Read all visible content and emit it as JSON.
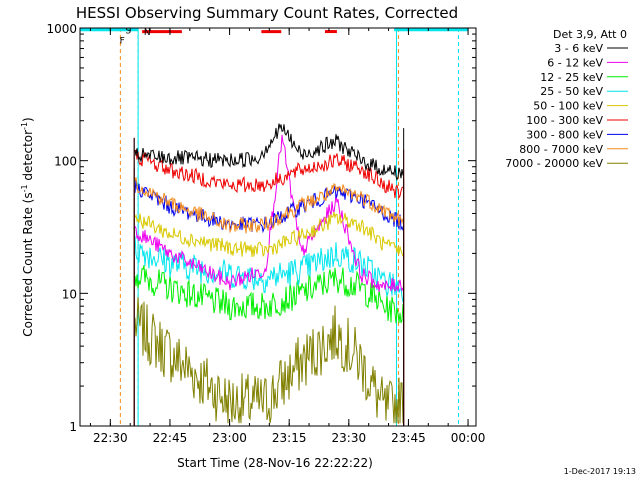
{
  "chart_data": {
    "type": "line",
    "title": "HESSI Observing Summary Count Rates, Corrected",
    "xlabel": "Start Time (28-Nov-16 22:22:22)",
    "ylabel_main": "Corrected Count Rate (s",
    "ylabel_sup1": "-1",
    "ylabel_mid": " detector",
    "ylabel_sup2": "-1",
    "ylabel_end": ")",
    "yscale": "log",
    "ylim": [
      1,
      1000
    ],
    "xlim": [
      "22:22:22",
      "00:02:00"
    ],
    "x_ticks": [
      "22:30",
      "22:45",
      "23:00",
      "23:15",
      "23:30",
      "23:45",
      "00:00"
    ],
    "y_ticks": [
      "1",
      "10",
      "100",
      "1000"
    ],
    "legend_title": "Det 3,9, Att 0",
    "legend_position": "top-right",
    "flags": {
      "S": {
        "label": "S",
        "color": "#f28a1c",
        "level": 990
      },
      "N": {
        "label": "N",
        "color": "#00e5ee",
        "level": 970
      },
      "F": {
        "label": "F",
        "color": "#ee0000",
        "level": 940,
        "segments": [
          [
            "22:38",
            "22:48"
          ],
          [
            "23:08",
            "23:13"
          ],
          [
            "23:24",
            "23:27"
          ]
        ]
      }
    },
    "night_intervals": [
      [
        "22:22",
        "22:37"
      ],
      [
        "23:42",
        "00:02"
      ]
    ],
    "series": [
      {
        "name": "3 - 6 keV",
        "color": "#000000",
        "values": [
          [
            22.6,
            110
          ],
          [
            22.75,
            105
          ],
          [
            23.0,
            100
          ],
          [
            23.12,
            105
          ],
          [
            23.22,
            180
          ],
          [
            23.3,
            110
          ],
          [
            23.45,
            140
          ],
          [
            23.55,
            100
          ],
          [
            23.65,
            85
          ],
          [
            23.73,
            80
          ]
        ]
      },
      {
        "name": "6 - 12 keV",
        "color": "#ee00ee",
        "values": [
          [
            22.6,
            30
          ],
          [
            22.75,
            20
          ],
          [
            23.0,
            12
          ],
          [
            23.15,
            15
          ],
          [
            23.22,
            150
          ],
          [
            23.3,
            20
          ],
          [
            23.45,
            50
          ],
          [
            23.55,
            14
          ],
          [
            23.65,
            11
          ],
          [
            23.73,
            12
          ]
        ]
      },
      {
        "name": "12 - 25 keV",
        "color": "#00ee00",
        "values": [
          [
            22.6,
            14
          ],
          [
            22.75,
            11
          ],
          [
            23.0,
            8
          ],
          [
            23.15,
            8
          ],
          [
            23.3,
            10
          ],
          [
            23.45,
            13
          ],
          [
            23.55,
            11
          ],
          [
            23.65,
            8
          ],
          [
            23.73,
            7
          ]
        ]
      },
      {
        "name": "25 - 50 keV",
        "color": "#00e5ee",
        "values": [
          [
            22.6,
            22
          ],
          [
            22.75,
            17
          ],
          [
            23.0,
            14
          ],
          [
            23.15,
            13
          ],
          [
            23.3,
            15
          ],
          [
            23.45,
            20
          ],
          [
            23.55,
            17
          ],
          [
            23.65,
            12
          ],
          [
            23.73,
            11
          ]
        ]
      },
      {
        "name": "50 - 100 keV",
        "color": "#d8c800",
        "values": [
          [
            22.6,
            38
          ],
          [
            22.75,
            28
          ],
          [
            23.0,
            22
          ],
          [
            23.15,
            21
          ],
          [
            23.3,
            27
          ],
          [
            23.45,
            37
          ],
          [
            23.55,
            33
          ],
          [
            23.65,
            23
          ],
          [
            23.73,
            20
          ]
        ]
      },
      {
        "name": "100 - 300 keV",
        "color": "#ee0000",
        "values": [
          [
            22.6,
            110
          ],
          [
            22.75,
            85
          ],
          [
            23.0,
            65
          ],
          [
            23.15,
            66
          ],
          [
            23.3,
            85
          ],
          [
            23.45,
            100
          ],
          [
            23.55,
            88
          ],
          [
            23.65,
            65
          ],
          [
            23.73,
            55
          ]
        ]
      },
      {
        "name": "300 - 800 keV",
        "color": "#0000ee",
        "values": [
          [
            22.6,
            65
          ],
          [
            22.75,
            45
          ],
          [
            23.0,
            33
          ],
          [
            23.15,
            33
          ],
          [
            23.3,
            45
          ],
          [
            23.45,
            58
          ],
          [
            23.55,
            52
          ],
          [
            23.65,
            40
          ],
          [
            23.73,
            33
          ]
        ]
      },
      {
        "name": "800 - 7000 keV",
        "color": "#f28a1c",
        "values": [
          [
            22.6,
            68
          ],
          [
            22.75,
            48
          ],
          [
            23.0,
            32
          ],
          [
            23.15,
            33
          ],
          [
            23.3,
            46
          ],
          [
            23.45,
            60
          ],
          [
            23.55,
            54
          ],
          [
            23.65,
            42
          ],
          [
            23.73,
            34
          ]
        ]
      },
      {
        "name": "7000 - 20000 keV",
        "color": "#808000",
        "values": [
          [
            22.6,
            6
          ],
          [
            22.75,
            3.5
          ],
          [
            23.0,
            1.5
          ],
          [
            23.15,
            1.5
          ],
          [
            23.3,
            3
          ],
          [
            23.45,
            5
          ],
          [
            23.55,
            3
          ],
          [
            23.65,
            1.3
          ],
          [
            23.73,
            1.5
          ]
        ]
      }
    ],
    "timestamp": "1-Dec-2017 19:13"
  }
}
